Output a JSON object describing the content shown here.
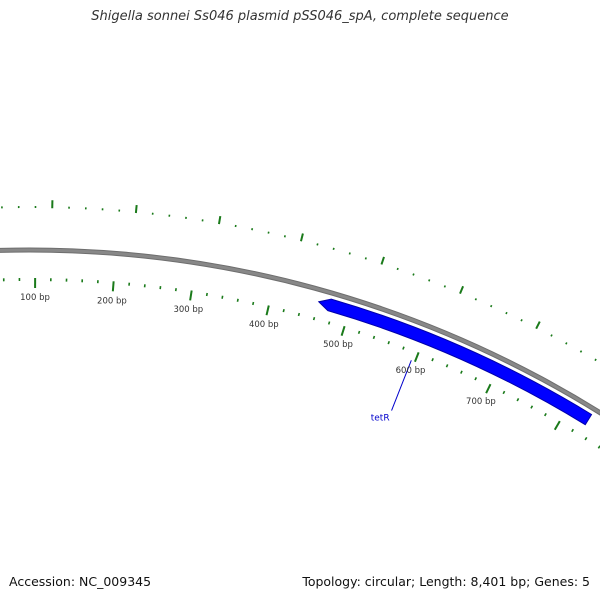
{
  "title": "Shigella sonnei Ss046 plasmid pSS046_spA, complete sequence",
  "footer": {
    "accession": "Accession: NC_009345",
    "summary": "Topology: circular; Length: 8,401 bp; Genes: 5"
  },
  "plasmid": {
    "length_bp": 8401,
    "topology": "circular",
    "backbone_color": "#888888",
    "tick_color": "#1a7a1a"
  },
  "ticks": {
    "labels": [
      "100 bp",
      "200 bp",
      "300 bp",
      "400 bp",
      "500 bp",
      "600 bp",
      "700 bp"
    ],
    "label_positions_bp": [
      100,
      200,
      300,
      400,
      500,
      600,
      700
    ],
    "minor_interval_bp": 20,
    "major_interval_bp": 100
  },
  "genes": [
    {
      "name": "tetR",
      "start_bp": 460,
      "end_bp": 830,
      "strand": "reverse",
      "color": "#0000ff"
    }
  ]
}
